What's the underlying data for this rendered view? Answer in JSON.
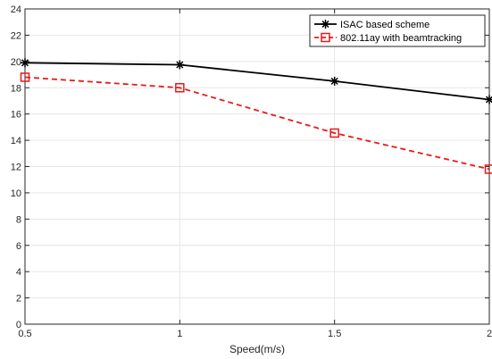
{
  "chart_data": {
    "type": "line",
    "title": "",
    "xlabel": "Speed(m/s)",
    "ylabel": "",
    "x": [
      0.5,
      1,
      1.5,
      2
    ],
    "xlim": [
      0.5,
      2
    ],
    "ylim": [
      0,
      24
    ],
    "xticks": [
      "0.5",
      "1",
      "1.5",
      "2"
    ],
    "yticks": [
      "0",
      "2",
      "4",
      "6",
      "8",
      "10",
      "12",
      "14",
      "16",
      "18",
      "20",
      "22",
      "24"
    ],
    "grid": true,
    "legend_position": "top-right",
    "series": [
      {
        "name": "ISAC based scheme",
        "values": [
          19.9,
          19.75,
          18.5,
          17.1
        ],
        "color": "#000000",
        "line_style": "solid",
        "marker": "asterisk"
      },
      {
        "name": "802.11ay with beamtracking",
        "values": [
          18.8,
          18.0,
          14.55,
          11.8
        ],
        "color": "#e8191b",
        "line_style": "dashed",
        "marker": "square"
      }
    ]
  }
}
